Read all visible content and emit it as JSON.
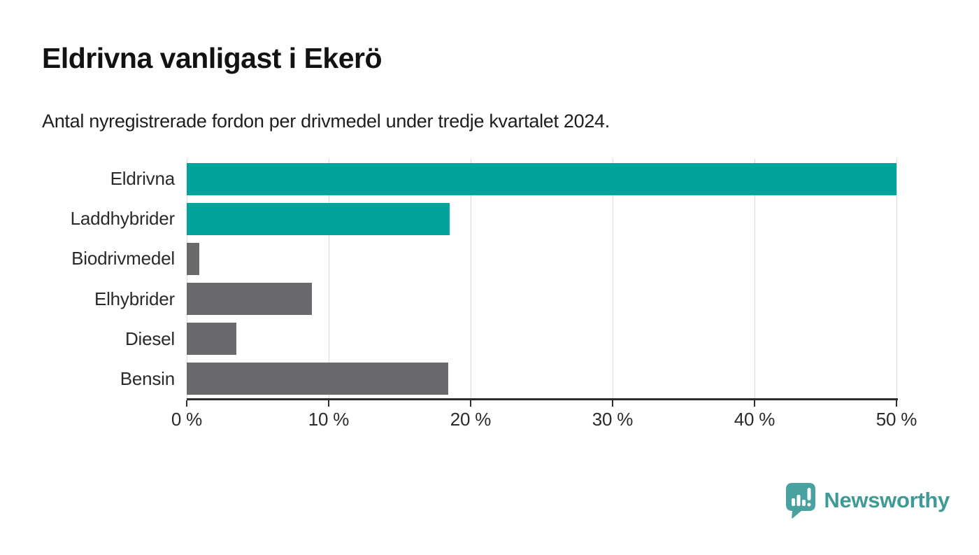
{
  "header": {
    "title": "Eldrivna vanligast i Ekerö",
    "subtitle": "Antal nyregistrerade fordon per drivmedel under tredje kvartalet 2024."
  },
  "chart_data": {
    "type": "bar",
    "orientation": "horizontal",
    "title": "Eldrivna vanligast i Ekerö",
    "subtitle": "Antal nyregistrerade fordon per drivmedel under tredje kvartalet 2024.",
    "categories": [
      "Eldrivna",
      "Laddhybrider",
      "Biodrivmedel",
      "Elhybrider",
      "Diesel",
      "Bensin"
    ],
    "values": [
      50.0,
      18.5,
      0.9,
      8.8,
      3.5,
      18.4
    ],
    "unit": "%",
    "xlim": [
      0,
      50
    ],
    "x_ticks": [
      0,
      10,
      20,
      30,
      40,
      50
    ],
    "x_tick_labels": [
      "0 %",
      "10 %",
      "20 %",
      "30 %",
      "40 %",
      "50 %"
    ],
    "bar_colors": [
      "#00a49a",
      "#00a49a",
      "#6a6a6d",
      "#6a6a6d",
      "#6a6a6d",
      "#6a6a6d"
    ],
    "highlight_color": "#00a49a",
    "default_color": "#6a6a6d",
    "grid": true,
    "gridline_color": "#d9d9d9",
    "legend": "none"
  },
  "footer": {
    "brand": "Newsworthy",
    "brand_text_color": "#3e9a94",
    "logo_bubble_color": "#4aa2a0",
    "logo_icon": "newsworthy-bubble-chart-icon"
  }
}
